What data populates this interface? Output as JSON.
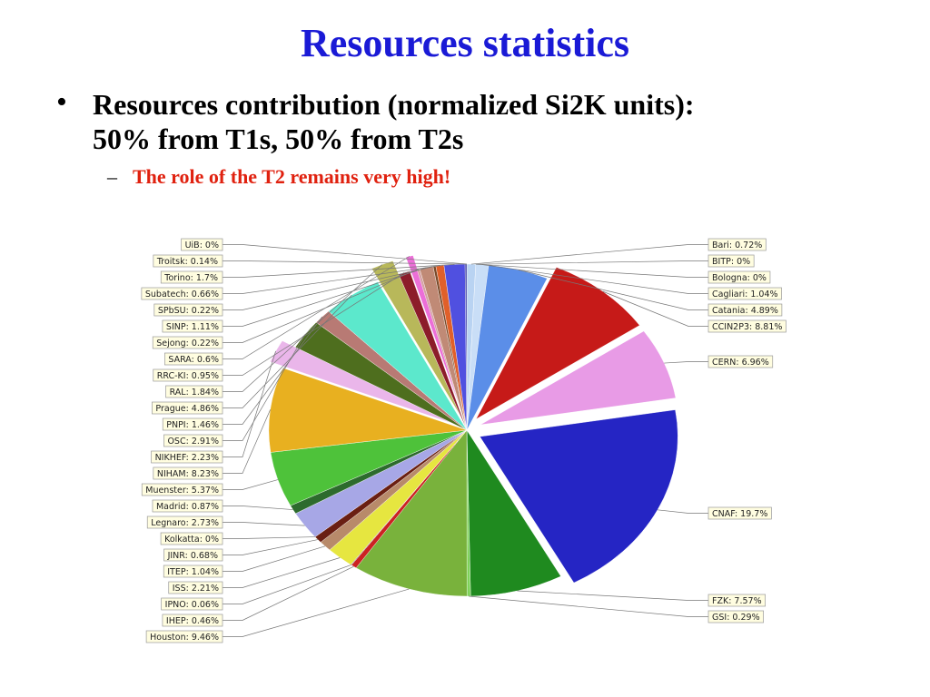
{
  "slide": {
    "title": "Resources statistics",
    "bullet_marker": "•",
    "bullet_line1": "Resources contribution (normalized Si2K units):",
    "bullet_line2": "50% from T1s, 50% from T2s",
    "sub_marker": "–",
    "sub_text": "The role of the T2 remains very high!"
  },
  "chart_data": {
    "type": "pie",
    "title": "",
    "slices": [
      {
        "name": "Bari",
        "value": 0.72,
        "label": "Bari: 0.72%",
        "color": "#b9d3f2",
        "side": "right"
      },
      {
        "name": "BITP",
        "value": 0.0,
        "label": "BITP: 0%",
        "color": "#888888",
        "side": "right"
      },
      {
        "name": "Bologna",
        "value": 0.0,
        "label": "Bologna: 0%",
        "color": "#888888",
        "side": "right"
      },
      {
        "name": "Cagliari",
        "value": 1.04,
        "label": "Cagliari: 1.04%",
        "color": "#c9def7",
        "side": "right"
      },
      {
        "name": "Catania",
        "value": 4.89,
        "label": "Catania: 4.89%",
        "color": "#5b8ee8",
        "side": "right"
      },
      {
        "name": "CCIN2P3",
        "value": 8.81,
        "label": "CCIN2P3: 8.81%",
        "color": "#c61a18",
        "side": "right",
        "exploded": true
      },
      {
        "name": "CERN",
        "value": 6.96,
        "label": "CERN: 6.96%",
        "color": "#e89be6",
        "side": "right",
        "exploded": true
      },
      {
        "name": "CNAF",
        "value": 19.7,
        "label": "CNAF: 19.7%",
        "color": "#2525c4",
        "side": "right",
        "exploded": true
      },
      {
        "name": "FZK",
        "value": 7.57,
        "label": "FZK: 7.57%",
        "color": "#1f8a1f",
        "side": "right"
      },
      {
        "name": "GSI",
        "value": 0.29,
        "label": "GSI: 0.29%",
        "color": "#7fd35a",
        "side": "right"
      },
      {
        "name": "Houston",
        "value": 9.46,
        "label": "Houston: 9.46%",
        "color": "#79b23c",
        "side": "left"
      },
      {
        "name": "IHEP",
        "value": 0.46,
        "label": "IHEP: 0.46%",
        "color": "#cc2222",
        "side": "left"
      },
      {
        "name": "IPNO",
        "value": 0.06,
        "label": "IPNO: 0.06%",
        "color": "#666666",
        "side": "left"
      },
      {
        "name": "ISS",
        "value": 2.21,
        "label": "ISS: 2.21%",
        "color": "#e6e640",
        "side": "left"
      },
      {
        "name": "ITEP",
        "value": 1.04,
        "label": "ITEP: 1.04%",
        "color": "#b88a6a",
        "side": "left"
      },
      {
        "name": "JINR",
        "value": 0.68,
        "label": "JINR: 0.68%",
        "color": "#6a1f12",
        "side": "left"
      },
      {
        "name": "Kolkatta",
        "value": 0.0,
        "label": "Kolkatta: 0%",
        "color": "#888888",
        "side": "left"
      },
      {
        "name": "Legnaro",
        "value": 2.73,
        "label": "Legnaro: 2.73%",
        "color": "#a7a7e6",
        "side": "left"
      },
      {
        "name": "Madrid",
        "value": 0.87,
        "label": "Madrid: 0.87%",
        "color": "#2d6b2d",
        "side": "left"
      },
      {
        "name": "Muenster",
        "value": 5.37,
        "label": "Muenster: 5.37%",
        "color": "#4ec23a",
        "side": "left"
      },
      {
        "name": "NIHAM",
        "value": 8.23,
        "label": "NIHAM: 8.23%",
        "color": "#e8b020",
        "side": "left"
      },
      {
        "name": "NIKHEF",
        "value": 2.23,
        "label": "NIKHEF: 2.23%",
        "color": "#eab6ea",
        "side": "left",
        "exploded": true
      },
      {
        "name": "OSC",
        "value": 2.91,
        "label": "OSC: 2.91%",
        "color": "#4e6e1e",
        "side": "left"
      },
      {
        "name": "PNPI",
        "value": 1.46,
        "label": "PNPI: 1.46%",
        "color": "#b87a74",
        "side": "left"
      },
      {
        "name": "Prague",
        "value": 4.86,
        "label": "Prague: 4.86%",
        "color": "#5ce8cc",
        "side": "left"
      },
      {
        "name": "RAL",
        "value": 1.84,
        "label": "RAL: 1.84%",
        "color": "#b8b85a",
        "side": "left",
        "exploded": true
      },
      {
        "name": "RRC-KI",
        "value": 0.95,
        "label": "RRC-KI: 0.95%",
        "color": "#8c1c2a",
        "side": "left"
      },
      {
        "name": "SARA",
        "value": 0.6,
        "label": "SARA: 0.6%",
        "color": "#ec6fd8",
        "side": "left",
        "exploded": true
      },
      {
        "name": "Sejong",
        "value": 0.22,
        "label": "Sejong: 0.22%",
        "color": "#d4a2a2",
        "side": "left"
      },
      {
        "name": "SINP",
        "value": 1.11,
        "label": "SINP: 1.11%",
        "color": "#c08a76",
        "side": "left"
      },
      {
        "name": "SPbSU",
        "value": 0.22,
        "label": "SPbSU: 0.22%",
        "color": "#7a4a2a",
        "side": "left"
      },
      {
        "name": "Subatech",
        "value": 0.66,
        "label": "Subatech: 0.66%",
        "color": "#e0602a",
        "side": "left"
      },
      {
        "name": "Torino",
        "value": 1.7,
        "label": "Torino: 1.7%",
        "color": "#5050e0",
        "side": "left"
      },
      {
        "name": "Troitsk",
        "value": 0.14,
        "label": "Troitsk: 0.14%",
        "color": "#3a3aa0",
        "side": "left"
      },
      {
        "name": "UiB",
        "value": 0.0,
        "label": "UiB: 0%",
        "color": "#888888",
        "side": "left"
      }
    ],
    "right_labels_order": [
      "Bari",
      "BITP",
      "Bologna",
      "Cagliari",
      "Catania",
      "CCIN2P3",
      "CERN",
      "CNAF",
      "FZK",
      "GSI"
    ],
    "left_labels_order": [
      "UiB",
      "Troitsk",
      "Torino",
      "Subatech",
      "SPbSU",
      "SINP",
      "Sejong",
      "SARA",
      "RRC-KI",
      "RAL",
      "Prague",
      "PNPI",
      "OSC",
      "NIKHEF",
      "NIHAM",
      "Muenster",
      "Madrid",
      "Legnaro",
      "Kolkatta",
      "JINR",
      "ITEP",
      "ISS",
      "IPNO",
      "IHEP",
      "Houston"
    ]
  }
}
